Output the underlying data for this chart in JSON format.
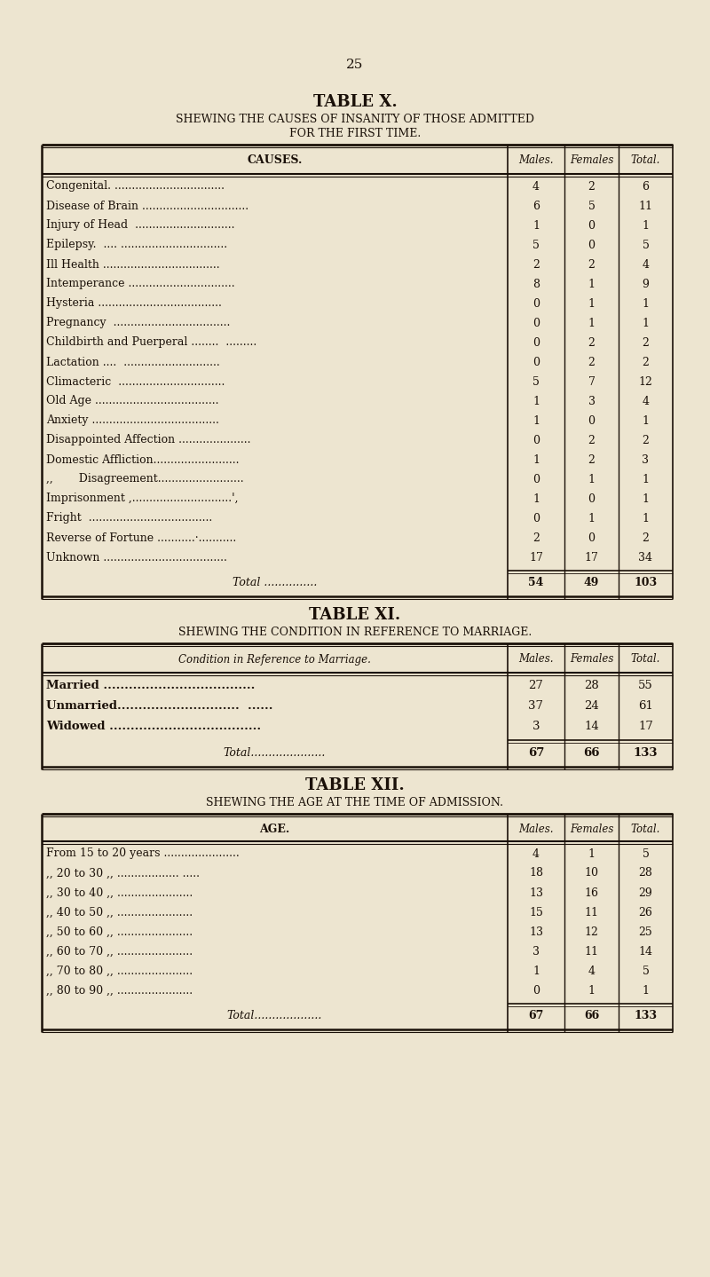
{
  "bg_color": "#ede5d0",
  "text_color": "#1a1008",
  "page_number": "25",
  "table_x_title1": "TABLE X.",
  "table_x_title2": "SHEWING THE CAUSES OF INSANITY OF THOSE ADMITTED",
  "table_x_title3": "FOR THE FIRST TIME.",
  "table_x_col_headers": [
    "CAUSES.",
    "Males.",
    "Females",
    "Total."
  ],
  "table_x_rows": [
    [
      "Congenital. ................................",
      "4",
      "2",
      "6"
    ],
    [
      "Disease of Brain ...............................",
      "6",
      "5",
      "11"
    ],
    [
      "Injury of Head  .............................",
      "1",
      "0",
      "1"
    ],
    [
      "Epilepsy.  .... ...............................",
      "5",
      "0",
      "5"
    ],
    [
      "Ill Health ..................................",
      "2",
      "2",
      "4"
    ],
    [
      "Intemperance ...............................",
      "8",
      "1",
      "9"
    ],
    [
      "Hysteria ....................................",
      "0",
      "1",
      "1"
    ],
    [
      "Pregnancy  ..................................",
      "0",
      "1",
      "1"
    ],
    [
      "Childbirth and Puerperal ........  .........",
      "0",
      "2",
      "2"
    ],
    [
      "Lactation ....  ............................",
      "0",
      "2",
      "2"
    ],
    [
      "Climacteric  ...............................",
      "5",
      "7",
      "12"
    ],
    [
      "Old Age ....................................",
      "1",
      "3",
      "4"
    ],
    [
      "Anxiety .....................................",
      "1",
      "0",
      "1"
    ],
    [
      "Disappointed Affection .....................",
      "0",
      "2",
      "2"
    ],
    [
      "Domestic Affliction.........................",
      "1",
      "2",
      "3"
    ],
    [
      ",,   Disagreement.........................",
      "0",
      "1",
      "1"
    ],
    [
      "Imprisonment ,.............................', ",
      "1",
      "0",
      "1"
    ],
    [
      "Fright  ....................................",
      "0",
      "1",
      "1"
    ],
    [
      "Reverse of Fortune ...........·...........",
      "2",
      "0",
      "2"
    ],
    [
      "Unknown ....................................",
      "17",
      "17",
      "34"
    ]
  ],
  "table_x_total": [
    "Total ...............",
    "54",
    "49",
    "103"
  ],
  "table_xi_title1": "TABLE XI.",
  "table_xi_title2": "SHEWING THE CONDITION IN REFERENCE TO MARRIAGE.",
  "table_xi_col_headers": [
    "Condition in Reference to Marriage.",
    "Males.",
    "Females",
    "Total."
  ],
  "table_xi_rows": [
    [
      "Married ....................................",
      "27",
      "28",
      "55"
    ],
    [
      "Unmarried.............................  ......",
      "37",
      "24",
      "61"
    ],
    [
      "Widowed ....................................",
      "3",
      "14",
      "17"
    ]
  ],
  "table_xi_total": [
    "Total.....................",
    "67",
    "66",
    "133"
  ],
  "table_xii_title1": "TABLE XII.",
  "table_xii_title2": "SHEWING THE AGE AT THE TIME OF ADMISSION.",
  "table_xii_col_headers": [
    "AGE.",
    "Males.",
    "Females",
    "Total."
  ],
  "table_xii_rows": [
    [
      "From 15 to 20 years ......................",
      "4",
      "1",
      "5"
    ],
    [
      ",, 20 to 30 ,, .................. .....",
      "18",
      "10",
      "28"
    ],
    [
      ",, 30 to 40 ,, ......................",
      "13",
      "16",
      "29"
    ],
    [
      ",, 40 to 50 ,, ......................",
      "15",
      "11",
      "26"
    ],
    [
      ",, 50 to 60 ,, ......................",
      "13",
      "12",
      "25"
    ],
    [
      ",, 60 to 70 ,, ......................",
      "3",
      "11",
      "14"
    ],
    [
      ",, 70 to 80 ,, ......................",
      "1",
      "4",
      "5"
    ],
    [
      ",, 80 to 90 ,, ......................",
      "0",
      "1",
      "1"
    ]
  ],
  "table_xii_total": [
    "Total...................",
    "67",
    "66",
    "133"
  ],
  "figw": 8.0,
  "figh": 14.39,
  "dpi": 100
}
